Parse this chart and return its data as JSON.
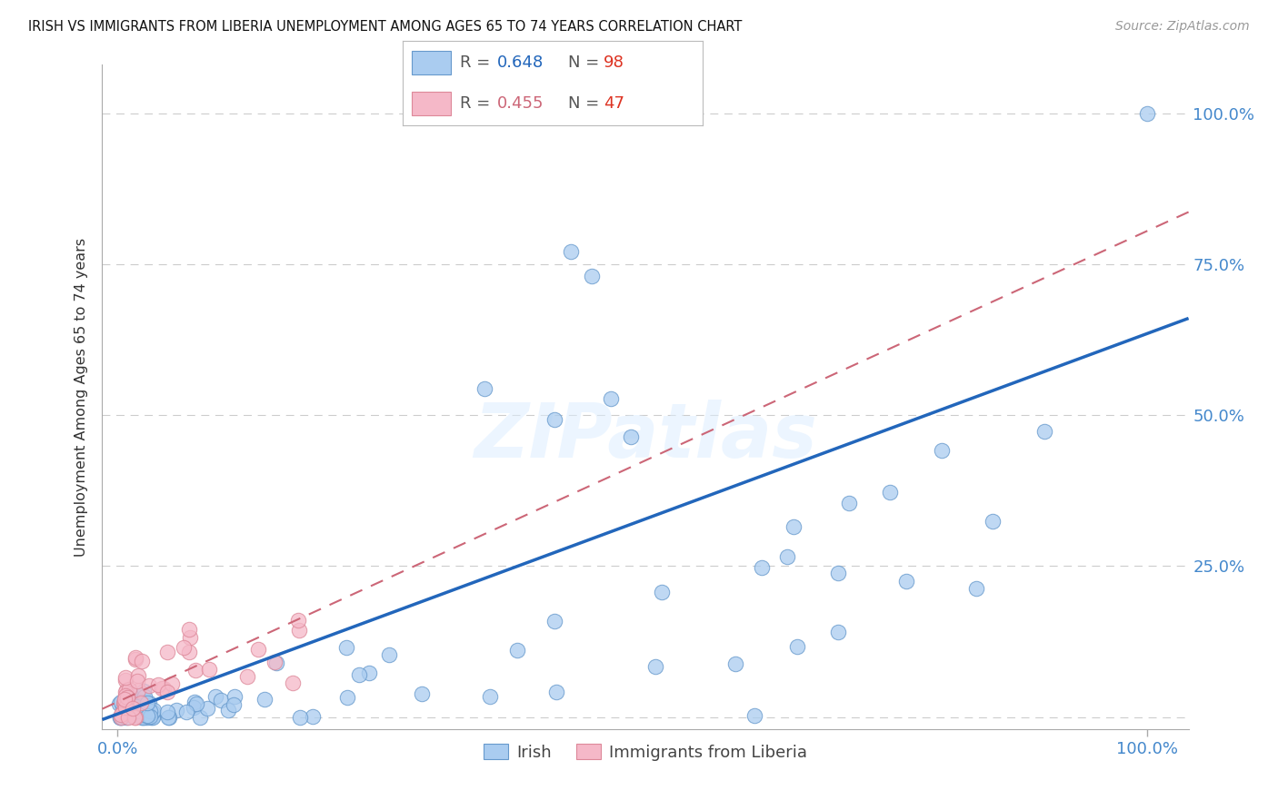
{
  "title": "IRISH VS IMMIGRANTS FROM LIBERIA UNEMPLOYMENT AMONG AGES 65 TO 74 YEARS CORRELATION CHART",
  "source": "Source: ZipAtlas.com",
  "ylabel": "Unemployment Among Ages 65 to 74 years",
  "legend_irish": "Irish",
  "legend_liberia": "Immigrants from Liberia",
  "irish_R": 0.648,
  "irish_N": 98,
  "liberia_R": 0.455,
  "liberia_N": 47,
  "irish_color": "#aaccf0",
  "irish_edge_color": "#6699cc",
  "irish_line_color": "#2266bb",
  "liberia_color": "#f5b8c8",
  "liberia_edge_color": "#dd8899",
  "liberia_line_color": "#cc6677",
  "watermark": "ZIPatlas",
  "background_color": "#ffffff",
  "axis_color": "#4488cc",
  "grid_color": "#cccccc",
  "irish_slope": 0.63,
  "irish_intercept": 0.005,
  "liberia_slope": 0.78,
  "liberia_intercept": 0.025
}
